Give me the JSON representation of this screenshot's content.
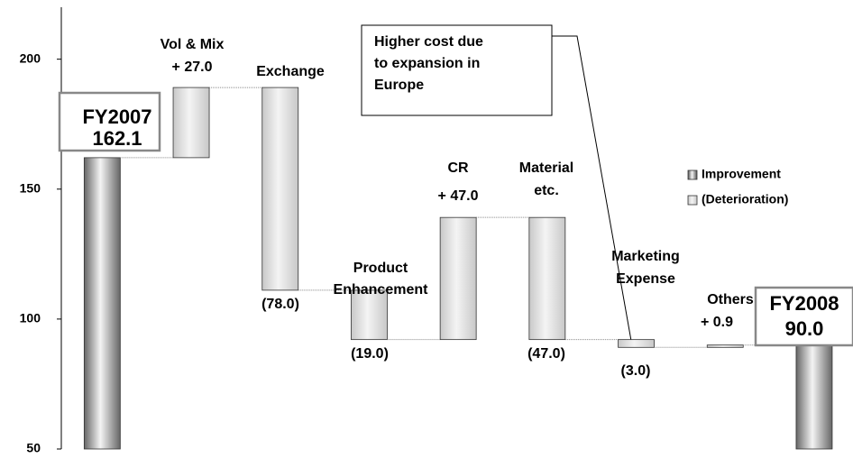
{
  "chart_data": {
    "type": "waterfall",
    "categories": [
      [
        "FY2007"
      ],
      [
        "Vol & Mix"
      ],
      [
        "Exchange"
      ],
      [
        "Product",
        "Enhancement"
      ],
      [
        "CR"
      ],
      [
        "Material",
        "etc."
      ],
      [
        "Marketing",
        "Expense"
      ],
      [
        "Others"
      ],
      [
        "FY2008"
      ]
    ],
    "measure": [
      "total",
      "relative",
      "relative",
      "relative",
      "relative",
      "relative",
      "relative",
      "relative",
      "total"
    ],
    "values": [
      162.1,
      27.0,
      -78.0,
      -19.0,
      47.0,
      -47.0,
      -3.0,
      0.9,
      90.0
    ],
    "value_labels": [
      "162.1",
      "+ 27.0",
      "(78.0)",
      "(19.0)",
      "+ 47.0",
      "(47.0)",
      "(3.0)",
      "+ 0.9",
      "90.0"
    ],
    "total_color": "#666666",
    "change_color": "#c8c8c8",
    "ylim": [
      50,
      220
    ],
    "yticks": [
      50,
      100,
      150,
      200
    ],
    "legend": [
      {
        "name": "Improvement",
        "color": "#555555"
      },
      {
        "name": "(Deterioration)",
        "color": "#c8c8c8"
      }
    ],
    "annotation": [
      "Higher cost due",
      "to expansion in",
      "Europe"
    ]
  }
}
